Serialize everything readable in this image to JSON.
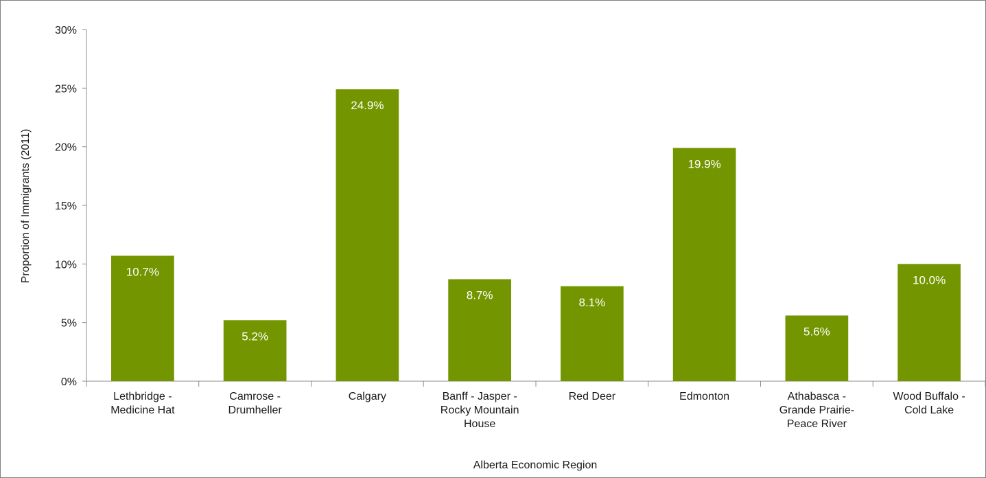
{
  "chart_data": {
    "type": "bar",
    "title": "",
    "xlabel": "Alberta Economic Region",
    "ylabel": "Proportion of Immigrants (2011)",
    "ylim": [
      0,
      30
    ],
    "y_ticks": [
      "0%",
      "5%",
      "10%",
      "15%",
      "20%",
      "25%",
      "30%"
    ],
    "y_tick_values": [
      0,
      5,
      10,
      15,
      20,
      25,
      30
    ],
    "categories": [
      [
        "Lethbridge -",
        "Medicine Hat"
      ],
      [
        "Camrose -",
        "Drumheller"
      ],
      [
        "Calgary"
      ],
      [
        "Banff - Jasper -",
        "Rocky Mountain",
        "House"
      ],
      [
        "Red Deer"
      ],
      [
        "Edmonton"
      ],
      [
        "Athabasca -",
        "Grande Prairie-",
        "Peace River"
      ],
      [
        "Wood Buffalo -",
        "Cold Lake"
      ]
    ],
    "values": [
      10.7,
      5.2,
      24.9,
      8.7,
      8.1,
      19.9,
      5.6,
      10.0
    ],
    "data_labels": [
      "10.7%",
      "5.2%",
      "24.9%",
      "8.7%",
      "8.1%",
      "19.9%",
      "5.6%",
      "10.0%"
    ],
    "bar_color": "#739600",
    "axis_color": "#8c8c8c",
    "grid": false,
    "legend": "none"
  }
}
